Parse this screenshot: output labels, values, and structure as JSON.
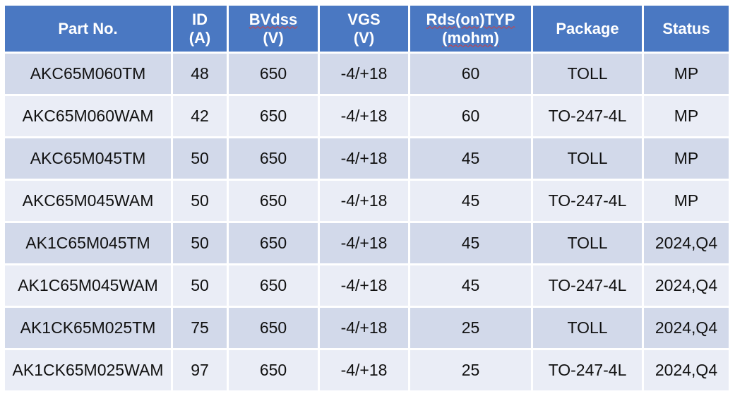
{
  "table": {
    "headers": [
      {
        "line1": "Part No.",
        "line2": ""
      },
      {
        "line1": "ID",
        "line2": "(A)"
      },
      {
        "line1": "BVdss",
        "line2": "(V)"
      },
      {
        "line1": "VGS",
        "line2": "(V)"
      },
      {
        "line1": "Rds(on)TYP",
        "line2": "(mohm)"
      },
      {
        "line1": "Package",
        "line2": ""
      },
      {
        "line1": "Status",
        "line2": ""
      }
    ],
    "rows": [
      [
        "AKC65M060TM",
        "48",
        "650",
        "-4/+18",
        "60",
        "TOLL",
        "MP"
      ],
      [
        "AKC65M060WAM",
        "42",
        "650",
        "-4/+18",
        "60",
        "TO-247-4L",
        "MP"
      ],
      [
        "AKC65M045TM",
        "50",
        "650",
        "-4/+18",
        "45",
        "TOLL",
        "MP"
      ],
      [
        "AKC65M045WAM",
        "50",
        "650",
        "-4/+18",
        "45",
        "TO-247-4L",
        "MP"
      ],
      [
        "AK1C65M045TM",
        "50",
        "650",
        "-4/+18",
        "45",
        "TOLL",
        "2024,Q4"
      ],
      [
        "AK1C65M045WAM",
        "50",
        "650",
        "-4/+18",
        "45",
        "TO-247-4L",
        "2024,Q4"
      ],
      [
        "AK1CK65M025TM",
        "75",
        "650",
        "-4/+18",
        "25",
        "TOLL",
        "2024,Q4"
      ],
      [
        "AK1CK65M025WAM",
        "97",
        "650",
        "-4/+18",
        "25",
        "TO-247-4L",
        "2024,Q4"
      ]
    ]
  },
  "colors": {
    "header_bg": "#4a78c2",
    "row_odd_bg": "#d2d9ea",
    "row_even_bg": "#eaedf6"
  }
}
